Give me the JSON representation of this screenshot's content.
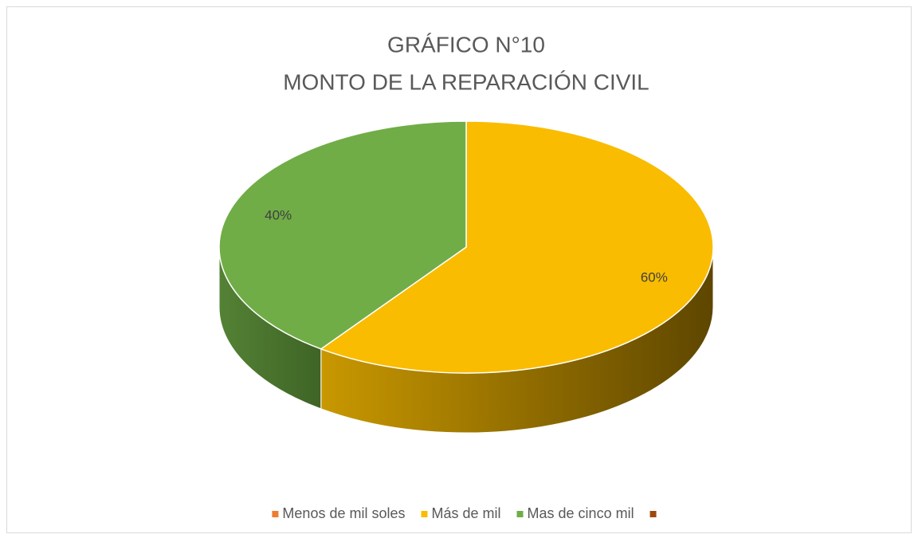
{
  "chart_data": {
    "type": "pie",
    "title": "GRÁFICO N°10",
    "subtitle": "MONTO DE LA REPARACIÓN CIVIL",
    "categories": [
      "Menos de mil soles",
      "Más de mil",
      "Mas de cinco mil",
      null
    ],
    "values": [
      0,
      60,
      40,
      0
    ],
    "value_labels": [
      null,
      "60%",
      "40%",
      null
    ],
    "colors": [
      "#ED7D31",
      "#F9BC00",
      "#70AD47",
      "#9E480E"
    ],
    "legend": "bottom"
  }
}
